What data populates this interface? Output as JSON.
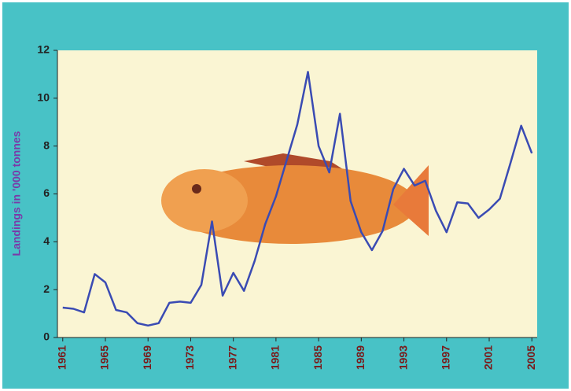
{
  "chart_data": {
    "type": "line",
    "y_label": "Landings in '000 tonnes",
    "x": [
      1961,
      1962,
      1963,
      1964,
      1965,
      1966,
      1967,
      1968,
      1969,
      1970,
      1971,
      1972,
      1973,
      1974,
      1975,
      1976,
      1977,
      1978,
      1979,
      1980,
      1981,
      1982,
      1983,
      1984,
      1985,
      1986,
      1987,
      1988,
      1989,
      1990,
      1991,
      1992,
      1993,
      1994,
      1995,
      1996,
      1997,
      1998,
      1999,
      2000,
      2001,
      2002,
      2003,
      2004,
      2005
    ],
    "values": [
      1.25,
      1.2,
      1.05,
      2.65,
      2.3,
      1.15,
      1.05,
      0.6,
      0.5,
      0.6,
      1.45,
      1.5,
      1.45,
      2.2,
      4.85,
      1.75,
      2.7,
      1.95,
      3.2,
      4.75,
      5.9,
      7.4,
      8.9,
      11.1,
      8.0,
      6.9,
      9.35,
      5.7,
      4.4,
      3.65,
      4.45,
      6.2,
      7.05,
      6.35,
      6.55,
      5.3,
      4.4,
      5.65,
      5.6,
      5.0,
      5.35,
      5.8,
      7.3,
      8.85,
      7.7
    ],
    "color": "#3a4bb3",
    "xlim": [
      1960.5,
      2005.5
    ],
    "xticks": [
      1961,
      1965,
      1969,
      1973,
      1977,
      1981,
      1985,
      1989,
      1993,
      1997,
      2001,
      2005
    ],
    "ylim": [
      0,
      12
    ],
    "yticks": [
      0,
      2,
      4,
      6,
      8,
      10,
      12
    ]
  }
}
